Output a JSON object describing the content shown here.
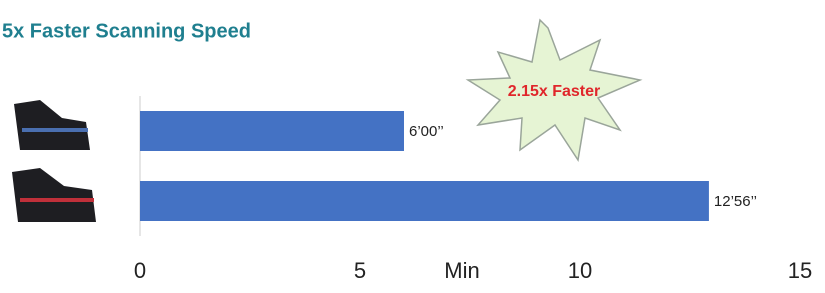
{
  "chart_data": {
    "type": "bar",
    "orientation": "horizontal",
    "title": "5x Faster Scanning Speed",
    "annotation": "2.15x Faster",
    "xlabel": "Min",
    "categories": [
      null,
      null
    ],
    "values": [
      6,
      12.93
    ],
    "value_labels": [
      "6’00’’",
      "12’56’’"
    ],
    "color": "#4472c4",
    "xlim": [
      0,
      15
    ],
    "xticks": [
      0,
      5,
      10,
      15
    ],
    "grid": false
  }
}
